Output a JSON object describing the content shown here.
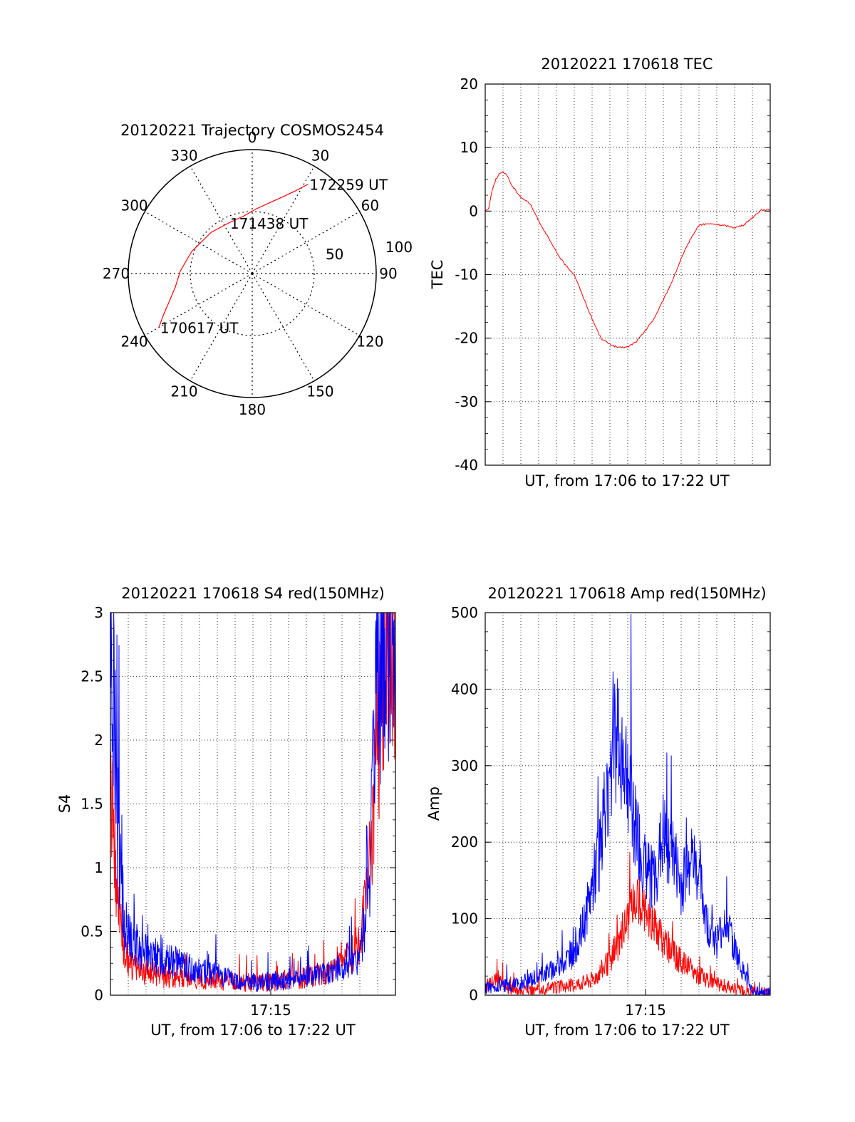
{
  "colors": {
    "red": "#ff0000",
    "blue": "#0000ff",
    "axis": "#000000",
    "grid": "#000000"
  },
  "chart_data": [
    {
      "id": "polar",
      "type": "polar",
      "title": "20120221 Trajectory COSMOS2454",
      "angle_labels": [
        "0",
        "30",
        "60",
        "90",
        "120",
        "150",
        "180",
        "210",
        "240",
        "270",
        "300",
        "330"
      ],
      "radius_labels": [
        "50",
        "100"
      ],
      "series": [
        {
          "color": "red",
          "points": [
            [
              240,
              87
            ],
            [
              245,
              79
            ],
            [
              252,
              70
            ],
            [
              260,
              63
            ],
            [
              272,
              58
            ],
            [
              290,
              52
            ],
            [
              315,
              47
            ],
            [
              335,
              45
            ],
            [
              352,
              47
            ],
            [
              3,
              52
            ],
            [
              14,
              59
            ],
            [
              22,
              67
            ],
            [
              28,
              76
            ],
            [
              32,
              85
            ]
          ]
        }
      ],
      "annotations": [
        {
          "text": "172259 UT",
          "az": 32,
          "el": 85
        },
        {
          "text": "171438 UT",
          "az": 335,
          "el": 45
        },
        {
          "text": "170617 UT",
          "az": 240,
          "el": 87
        }
      ]
    },
    {
      "id": "tec",
      "type": "line",
      "title": "20120221 170618 TEC",
      "xlabel": "UT, from 17:06 to 17:22 UT",
      "ylabel": "TEC",
      "ylim": [
        -40,
        20
      ],
      "yticks": [
        "20",
        "10",
        "0",
        "-10",
        "-20",
        "-30",
        "-40"
      ],
      "xticks": [],
      "series": [
        {
          "color": "red",
          "x": [
            0,
            0.2,
            0.4,
            0.6,
            0.8,
            1.0,
            1.2,
            1.5,
            2.0,
            2.5,
            3.0,
            3.5,
            4.0,
            4.5,
            5.0,
            5.5,
            6.0,
            6.5,
            7.0,
            7.5,
            8.0,
            8.5,
            9.0,
            9.5,
            10.0,
            10.5,
            11.0,
            11.5,
            12.0,
            12.5,
            13.0,
            13.5,
            14.0,
            14.5,
            15.0,
            15.5,
            16.0
          ],
          "y": [
            0,
            0.5,
            3.5,
            5.0,
            5.9,
            6.1,
            5.8,
            4.0,
            2.2,
            1.2,
            -1.5,
            -4.0,
            -6.5,
            -8.5,
            -10.0,
            -13.5,
            -17.0,
            -20.0,
            -21.0,
            -21.5,
            -21.4,
            -20.5,
            -18.8,
            -16.8,
            -14.0,
            -11.0,
            -7.5,
            -4.5,
            -2.2,
            -2.0,
            -2.1,
            -2.3,
            -2.6,
            -2.2,
            -1.0,
            0.2,
            0.2
          ]
        }
      ]
    },
    {
      "id": "s4",
      "type": "line",
      "title": "20120221 170618 S4 red(150MHz)",
      "xlabel": "UT, from 17:06 to 17:22 UT",
      "ylabel": "S4",
      "ylim": [
        0,
        3
      ],
      "yticks": [
        "3",
        "2.5",
        "2",
        "1.5",
        "1",
        "0.5",
        "0"
      ],
      "xticks": [
        "17:15"
      ],
      "series": [
        {
          "color": "red",
          "x": [
            0,
            0.2,
            0.4,
            0.6,
            0.8,
            1.0,
            1.5,
            2.0,
            3.0,
            4.0,
            5.0,
            6.0,
            7.0,
            8.0,
            9.0,
            10.0,
            11.0,
            12.0,
            13.0,
            13.5,
            14.0,
            14.5,
            15.0,
            15.5,
            16.0
          ],
          "y": [
            1.8,
            1.2,
            0.8,
            0.5,
            0.35,
            0.25,
            0.2,
            0.18,
            0.14,
            0.13,
            0.13,
            0.12,
            0.1,
            0.1,
            0.1,
            0.12,
            0.14,
            0.17,
            0.22,
            0.3,
            0.42,
            0.9,
            2.0,
            2.6,
            2.8
          ]
        },
        {
          "color": "blue",
          "x": [
            0,
            0.2,
            0.4,
            0.6,
            0.8,
            1.0,
            1.5,
            2.0,
            3.0,
            4.0,
            5.0,
            6.0,
            7.0,
            8.0,
            9.0,
            10.0,
            11.0,
            12.0,
            13.0,
            13.5,
            14.0,
            14.5,
            15.0,
            15.5,
            16.0
          ],
          "y": [
            2.9,
            2.2,
            1.4,
            0.85,
            0.6,
            0.45,
            0.4,
            0.33,
            0.28,
            0.24,
            0.2,
            0.16,
            0.12,
            0.1,
            0.11,
            0.13,
            0.15,
            0.17,
            0.2,
            0.22,
            0.3,
            0.8,
            2.5,
            2.8,
            2.7
          ]
        }
      ]
    },
    {
      "id": "amp",
      "type": "line",
      "title": "20120221 170618 Amp red(150MHz)",
      "xlabel": "UT, from 17:06 to 17:22 UT",
      "ylabel": "Amp",
      "ylim": [
        0,
        500
      ],
      "yticks": [
        "500",
        "400",
        "300",
        "200",
        "100",
        "0"
      ],
      "xticks": [
        "17:15"
      ],
      "series": [
        {
          "color": "red",
          "x": [
            0,
            0.5,
            1.0,
            1.5,
            2.0,
            2.5,
            3.0,
            4.0,
            5.0,
            6.0,
            7.0,
            7.5,
            8.0,
            8.5,
            9.0,
            9.5,
            10.0,
            10.5,
            11.0,
            11.5,
            12.0,
            12.5,
            13.0,
            13.5,
            14.0,
            15.0,
            16.0
          ],
          "y": [
            10,
            20,
            15,
            8,
            5,
            6,
            8,
            10,
            14,
            20,
            45,
            70,
            100,
            125,
            110,
            90,
            70,
            55,
            45,
            35,
            25,
            20,
            15,
            12,
            8,
            5,
            5
          ]
        },
        {
          "color": "blue",
          "x": [
            0,
            1.0,
            2.0,
            3.0,
            4.0,
            5.0,
            5.5,
            6.0,
            6.5,
            7.0,
            7.5,
            8.0,
            8.5,
            9.0,
            9.5,
            10.0,
            10.5,
            11.0,
            11.5,
            12.0,
            12.5,
            13.0,
            13.5,
            14.0,
            14.5,
            15.0,
            16.0
          ],
          "y": [
            10,
            12,
            15,
            25,
            35,
            55,
            90,
            140,
            200,
            300,
            340,
            290,
            210,
            160,
            150,
            210,
            190,
            140,
            185,
            150,
            90,
            70,
            100,
            60,
            30,
            5,
            3
          ]
        }
      ]
    }
  ]
}
